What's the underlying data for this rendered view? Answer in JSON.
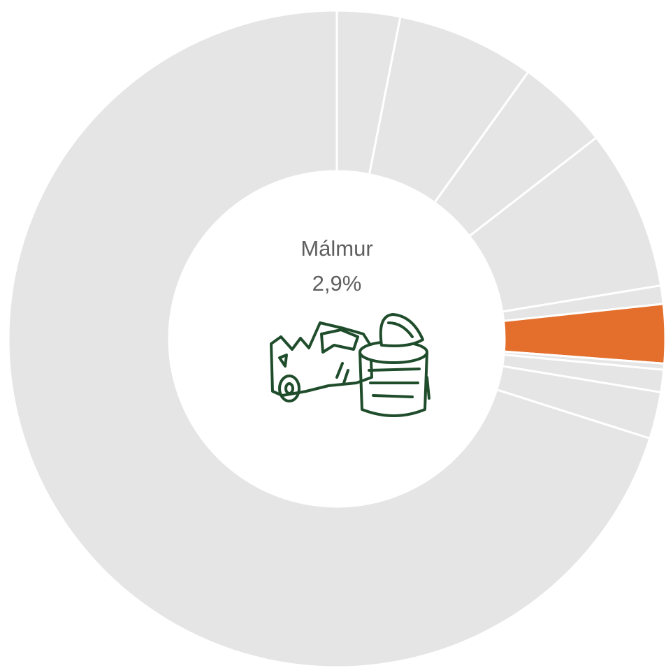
{
  "chart_data": {
    "type": "donut",
    "categories": [
      null,
      null,
      null,
      null,
      null,
      "Málmur",
      null,
      null,
      null,
      null
    ],
    "values": [
      3.1,
      6.8,
      4.6,
      7.9,
      0.9,
      2.9,
      0.3,
      1.1,
      2.3,
      70.1
    ],
    "value_labels": [
      null,
      null,
      null,
      null,
      null,
      "2,9%",
      null,
      null,
      null,
      null
    ],
    "colors": [
      "#e5e5e5",
      "#e5e5e5",
      "#e5e5e5",
      "#e5e5e5",
      "#e5e5e5",
      "#e46f2c",
      "#e5e5e5",
      "#e5e5e5",
      "#e5e5e5",
      "#e5e5e5"
    ]
  }
}
